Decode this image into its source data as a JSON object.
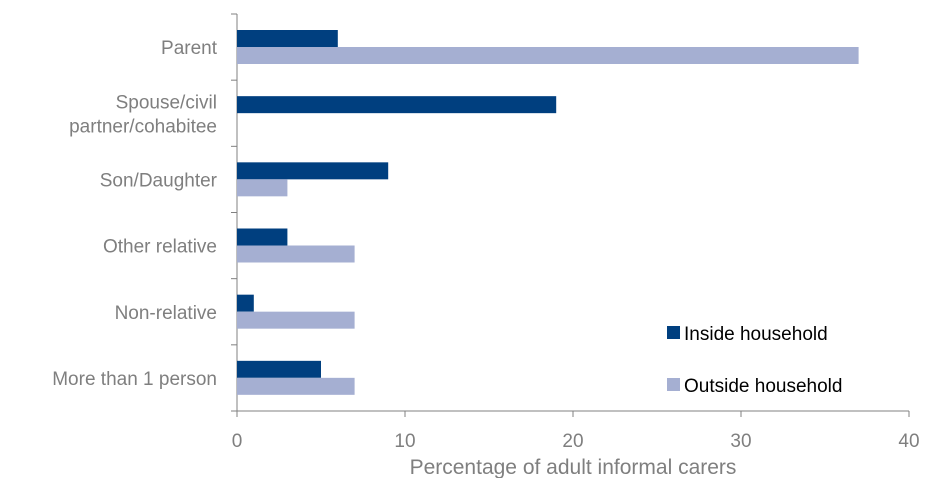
{
  "chart_data": {
    "type": "bar",
    "orientation": "horizontal",
    "title": "",
    "xlabel": "Percentage of adult informal carers",
    "ylabel": "",
    "categories": [
      "Parent",
      [
        "Spouse/civil",
        "partner/cohabitee"
      ],
      "Son/Daughter",
      "Other relative",
      "Non-relative",
      "More than 1 person"
    ],
    "series": [
      {
        "name": "Inside household",
        "values": [
          6,
          19,
          9,
          3,
          1,
          5
        ],
        "color": "#003f7f"
      },
      {
        "name": "Outside household",
        "values": [
          37,
          0,
          3,
          7,
          7,
          7
        ],
        "color": "#a5afd2"
      }
    ],
    "xlim": [
      0,
      40
    ],
    "xticks": [
      0,
      10,
      20,
      30,
      40
    ],
    "grid": false,
    "legend_position": "bottom-right",
    "axis_color": "#808080"
  }
}
